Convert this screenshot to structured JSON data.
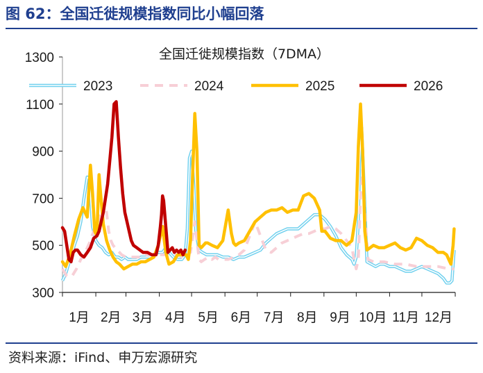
{
  "figure": {
    "title": "图 62：全国迁徙规模指数同比小幅回落",
    "source": "资料来源：iFind、申万宏源研究"
  },
  "colors": {
    "c2023": "#6fd0ee",
    "c2024": "#f7cfd6",
    "c2025": "#ffc000",
    "c2026": "#c00000",
    "heading": "#1f3f8f"
  },
  "chart_data": {
    "type": "line",
    "title": "全国迁徙规模指数（7DMA）",
    "xlabel": "",
    "ylabel": "",
    "ylim": [
      300,
      1300
    ],
    "yticks": [
      "1300",
      "1100",
      "900",
      "700",
      "500",
      "300"
    ],
    "xticks": [
      "1月",
      "2月",
      "3月",
      "4月",
      "5月",
      "6月",
      "7月",
      "8月",
      "9月",
      "10月",
      "11月",
      "12月"
    ],
    "x_unit": "day of year",
    "legend_position": "top",
    "series": [
      {
        "name": "2023",
        "style": "double",
        "x": [
          1,
          4,
          8,
          12,
          15,
          18,
          21,
          24,
          26,
          29,
          32,
          35,
          38,
          41,
          44,
          47,
          50,
          53,
          56,
          59,
          62,
          66,
          70,
          74,
          78,
          82,
          86,
          90,
          94,
          97,
          100,
          104,
          108,
          112,
          115,
          117,
          119,
          121,
          123,
          125,
          128,
          131,
          135,
          140,
          145,
          150,
          155,
          160,
          165,
          170,
          175,
          180,
          185,
          190,
          195,
          200,
          205,
          210,
          215,
          220,
          225,
          230,
          235,
          240,
          245,
          250,
          255,
          260,
          265,
          270,
          272,
          274,
          276,
          277,
          279,
          281,
          284,
          288,
          292,
          296,
          300,
          305,
          310,
          315,
          320,
          325,
          330,
          335,
          340,
          345,
          350,
          355,
          358,
          361,
          363,
          365
        ],
        "y": [
          350,
          380,
          440,
          500,
          540,
          600,
          700,
          790,
          780,
          580,
          520,
          500,
          490,
          470,
          460,
          470,
          450,
          450,
          440,
          450,
          440,
          440,
          440,
          450,
          450,
          450,
          460,
          470,
          470,
          490,
          470,
          450,
          440,
          440,
          460,
          570,
          870,
          900,
          750,
          560,
          480,
          470,
          460,
          460,
          460,
          450,
          450,
          440,
          450,
          450,
          460,
          470,
          480,
          510,
          530,
          550,
          560,
          570,
          570,
          570,
          590,
          610,
          630,
          630,
          610,
          580,
          540,
          490,
          460,
          440,
          420,
          450,
          600,
          850,
          1000,
          780,
          430,
          420,
          410,
          420,
          420,
          410,
          410,
          400,
          390,
          390,
          400,
          410,
          400,
          390,
          380,
          360,
          340,
          340,
          350,
          480
        ]
      },
      {
        "name": "2024",
        "style": "dashed",
        "x": [
          1,
          5,
          10,
          14,
          18,
          22,
          26,
          30,
          34,
          38,
          40,
          42,
          44,
          46,
          48,
          52,
          56,
          60,
          64,
          68,
          72,
          76,
          80,
          84,
          88,
          92,
          96,
          100,
          104,
          108,
          112,
          116,
          120,
          122,
          124,
          126,
          128,
          130,
          133,
          137,
          140,
          143,
          146,
          150,
          155,
          160,
          165,
          170,
          175,
          180,
          185,
          190,
          195,
          200,
          205,
          210,
          215,
          220,
          225,
          230,
          235,
          240,
          245,
          250,
          255,
          260,
          265,
          270,
          272,
          274,
          276,
          278,
          280,
          282,
          285,
          290,
          300,
          310,
          320,
          330,
          340,
          350,
          360,
          365
        ],
        "y": [
          400,
          370,
          370,
          400,
          440,
          470,
          510,
          560,
          600,
          650,
          680,
          640,
          560,
          520,
          500,
          480,
          460,
          450,
          450,
          450,
          450,
          450,
          460,
          460,
          460,
          460,
          460,
          460,
          460,
          460,
          450,
          460,
          470,
          530,
          600,
          520,
          440,
          430,
          440,
          450,
          440,
          450,
          440,
          440,
          440,
          450,
          460,
          480,
          540,
          600,
          540,
          480,
          470,
          490,
          510,
          520,
          530,
          540,
          550,
          550,
          560,
          570,
          570,
          580,
          570,
          550,
          520,
          490,
          440,
          400,
          440,
          700,
          820,
          640,
          440,
          430,
          430,
          420,
          420,
          410,
          410,
          410,
          400,
          400
        ]
      },
      {
        "name": "2025",
        "style": "solid",
        "x": [
          1,
          4,
          8,
          12,
          16,
          20,
          24,
          27,
          29,
          31,
          33,
          35,
          37,
          39,
          42,
          45,
          48,
          51,
          54,
          58,
          62,
          66,
          70,
          74,
          78,
          82,
          86,
          90,
          94,
          97,
          100,
          104,
          108,
          112,
          116,
          118,
          120,
          122,
          124,
          126,
          128,
          130,
          132,
          134,
          136,
          140,
          145,
          150,
          155,
          158,
          160,
          162,
          165,
          170,
          175,
          180,
          185,
          190,
          195,
          200,
          205,
          210,
          215,
          220,
          225,
          230,
          235,
          240,
          242,
          245,
          250,
          255,
          260,
          265,
          270,
          274,
          276,
          278,
          280,
          282,
          284,
          287,
          290,
          295,
          300,
          305,
          310,
          315,
          320,
          325,
          330,
          335,
          340,
          345,
          350,
          355,
          358,
          360,
          362,
          364,
          365
        ],
        "y": [
          430,
          410,
          460,
          540,
          610,
          660,
          620,
          840,
          720,
          560,
          540,
          800,
          690,
          590,
          520,
          480,
          450,
          430,
          420,
          400,
          410,
          420,
          420,
          430,
          430,
          440,
          450,
          500,
          580,
          470,
          420,
          430,
          460,
          460,
          460,
          440,
          520,
          800,
          1060,
          900,
          500,
          490,
          500,
          510,
          510,
          500,
          490,
          520,
          650,
          550,
          510,
          500,
          510,
          520,
          560,
          600,
          620,
          640,
          650,
          650,
          660,
          640,
          650,
          650,
          710,
          720,
          700,
          650,
          560,
          560,
          530,
          520,
          520,
          500,
          520,
          640,
          920,
          1100,
          900,
          560,
          480,
          490,
          500,
          490,
          490,
          500,
          510,
          490,
          480,
          490,
          530,
          520,
          500,
          490,
          470,
          470,
          460,
          440,
          420,
          500,
          570
        ]
      },
      {
        "name": "2026",
        "style": "solid",
        "x": [
          1,
          3,
          5,
          7,
          9,
          11,
          13,
          15,
          18,
          21,
          24,
          27,
          30,
          33,
          35,
          37,
          39,
          41,
          43,
          45,
          47,
          49,
          51,
          53,
          55,
          57,
          59,
          61,
          63,
          65,
          67,
          70,
          73,
          76,
          80,
          84,
          88,
          90,
          92,
          93,
          94,
          95,
          97,
          99,
          101,
          103,
          105,
          107,
          109,
          111,
          113,
          115
        ],
        "y": [
          575,
          560,
          500,
          440,
          430,
          470,
          480,
          480,
          460,
          450,
          470,
          490,
          530,
          540,
          560,
          600,
          640,
          700,
          760,
          860,
          960,
          1100,
          1110,
          960,
          830,
          720,
          640,
          600,
          560,
          520,
          500,
          490,
          480,
          470,
          470,
          460,
          460,
          500,
          580,
          630,
          710,
          690,
          580,
          470,
          480,
          490,
          470,
          480,
          470,
          480,
          460,
          480
        ]
      }
    ]
  }
}
